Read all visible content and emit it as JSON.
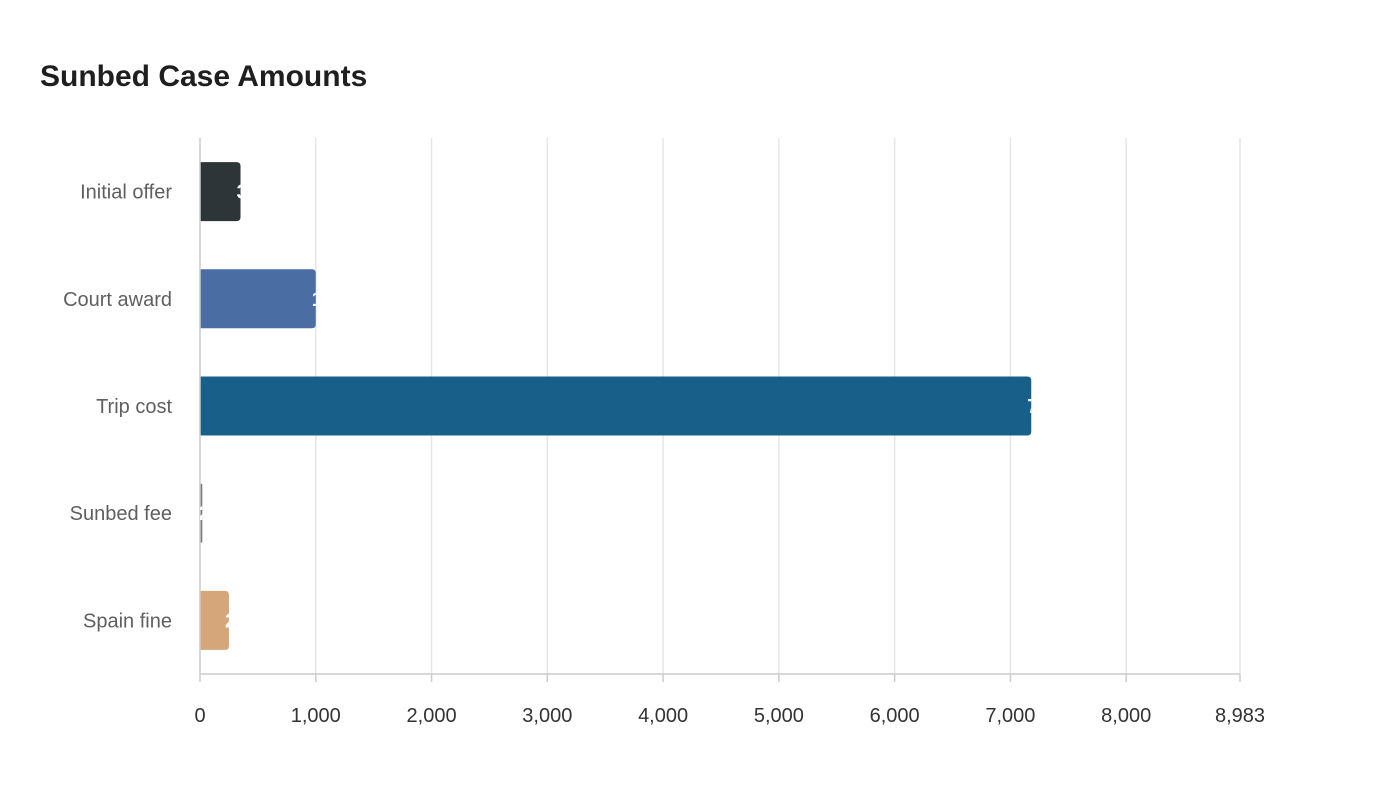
{
  "chart_data": {
    "type": "bar",
    "orientation": "horizontal",
    "title": "Sunbed Case Amounts",
    "xlabel": "",
    "ylabel": "",
    "categories": [
      "Initial offer",
      "Court award",
      "Trip cost",
      "Sunbed fee",
      "Spain fine"
    ],
    "values": [
      350,
      1000,
      7180,
      20,
      250
    ],
    "colors": [
      "#2e3538",
      "#4a6da3",
      "#186089",
      "#7a7a7a",
      "#d4a679"
    ],
    "xlim": [
      0,
      8983
    ],
    "xticks": [
      0,
      1000,
      2000,
      3000,
      4000,
      5000,
      6000,
      7000,
      8000,
      8983
    ],
    "xtick_labels": [
      "0",
      "1,000",
      "2,000",
      "3,000",
      "4,000",
      "5,000",
      "6,000",
      "7,000",
      "8,000",
      "8,983"
    ],
    "grid": true,
    "legend": "none"
  }
}
